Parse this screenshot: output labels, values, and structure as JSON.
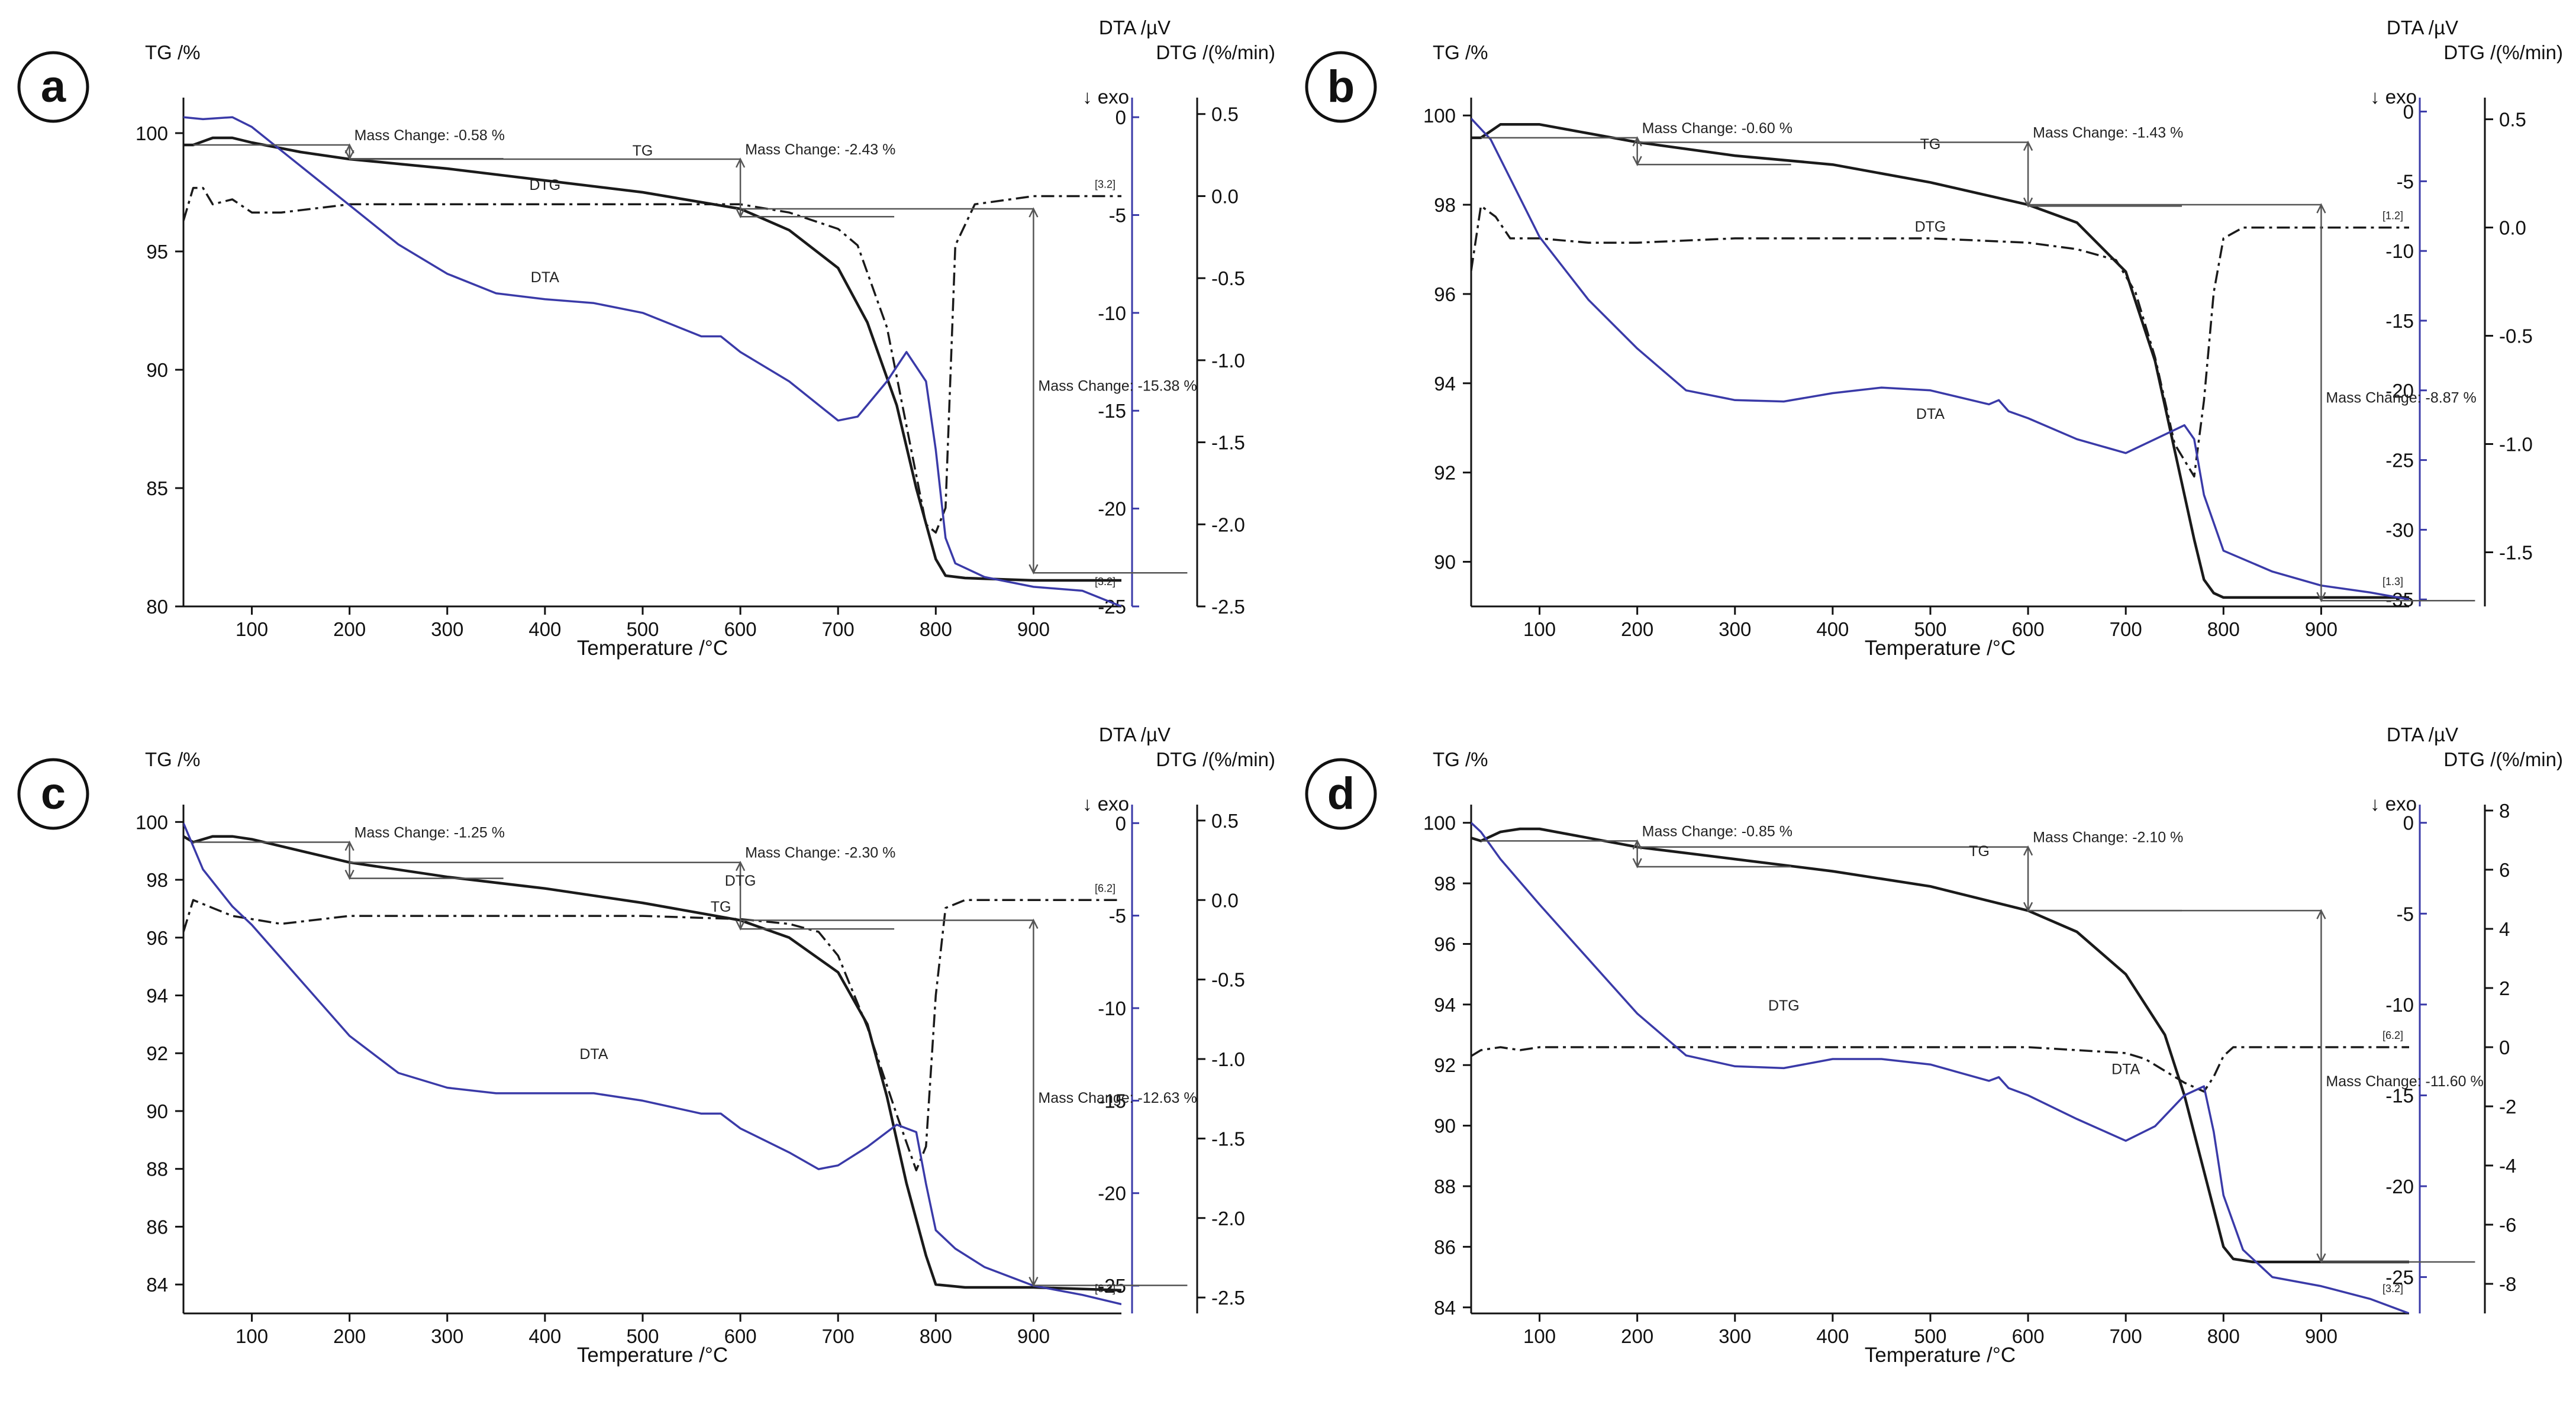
{
  "colors": {
    "tg": "#1a1a1a",
    "dtg": "#1a1a1a",
    "dta": "#3a3aa8",
    "axis": "#111111",
    "annotation": "#555555"
  },
  "chart_data": [
    {
      "panel_label": "a",
      "type": "line",
      "xlabel": "Temperature /°C",
      "left_label": "TG /%",
      "dta_label": "DTA /µV",
      "dtg_label": "DTG /(%/min)",
      "exo_label": "↓ exo",
      "xlim": [
        30,
        990
      ],
      "xticks": [
        100,
        200,
        300,
        400,
        500,
        600,
        700,
        800,
        900
      ],
      "tg_axis": {
        "range": [
          80,
          101.5
        ],
        "ticks": [
          80,
          85,
          90,
          95,
          100
        ]
      },
      "dta_axis": {
        "range": [
          -25,
          1
        ],
        "ticks": [
          0,
          -5,
          -10,
          -15,
          -20,
          -25
        ]
      },
      "dtg_axis": {
        "range": [
          -2.5,
          0.6
        ],
        "ticks": [
          0.5,
          0.0,
          -0.5,
          -1.0,
          -1.5,
          -2.0,
          -2.5
        ],
        "tick_labels": [
          "0.5",
          "0.0",
          "-0.5",
          "-1.0",
          "-1.5",
          "-2.0",
          "-2.5"
        ]
      },
      "series": [
        {
          "name": "TG",
          "axis": "tg",
          "x": [
            30,
            40,
            60,
            80,
            100,
            150,
            200,
            300,
            400,
            500,
            600,
            650,
            700,
            730,
            760,
            780,
            800,
            810,
            830,
            900,
            990
          ],
          "y": [
            99.5,
            99.5,
            99.8,
            99.8,
            99.6,
            99.2,
            98.9,
            98.5,
            98.0,
            97.5,
            96.8,
            95.9,
            94.3,
            92.0,
            88.5,
            85.0,
            82.0,
            81.3,
            81.2,
            81.1,
            81.1
          ]
        },
        {
          "name": "DTG",
          "axis": "dtg",
          "x": [
            30,
            40,
            50,
            60,
            80,
            100,
            130,
            200,
            300,
            400,
            500,
            600,
            650,
            700,
            720,
            750,
            770,
            790,
            800,
            810,
            820,
            840,
            900,
            990
          ],
          "y": [
            -0.15,
            0.05,
            0.05,
            -0.05,
            -0.02,
            -0.1,
            -0.1,
            -0.05,
            -0.05,
            -0.05,
            -0.05,
            -0.05,
            -0.1,
            -0.2,
            -0.3,
            -0.8,
            -1.4,
            -2.0,
            -2.05,
            -1.9,
            -0.3,
            -0.05,
            0.0,
            0.0
          ]
        },
        {
          "name": "DTA",
          "axis": "dta",
          "x": [
            30,
            50,
            80,
            100,
            150,
            200,
            250,
            300,
            350,
            400,
            450,
            500,
            560,
            580,
            600,
            650,
            700,
            720,
            750,
            770,
            790,
            800,
            810,
            820,
            850,
            900,
            950,
            990
          ],
          "y": [
            0.0,
            -0.1,
            0.0,
            -0.5,
            -2.5,
            -4.5,
            -6.5,
            -8.0,
            -9.0,
            -9.3,
            -9.5,
            -10.0,
            -11.2,
            -11.2,
            -12.0,
            -13.5,
            -15.5,
            -15.3,
            -13.5,
            -12.0,
            -13.5,
            -17.0,
            -21.5,
            -22.8,
            -23.5,
            -24.0,
            -24.2,
            -25.0
          ]
        }
      ],
      "annotations": [
        {
          "kind": "mass_change",
          "text": "Mass Change: -0.58 %"
        },
        {
          "kind": "mass_change",
          "text": "Mass Change: -2.43 %"
        },
        {
          "kind": "mass_change",
          "text": "Mass Change: -15.38 %"
        },
        {
          "kind": "curve_label",
          "text": "TG"
        },
        {
          "kind": "curve_label",
          "text": "DTG"
        },
        {
          "kind": "curve_label",
          "text": "DTA"
        },
        {
          "kind": "segment",
          "text": "[3.2]"
        },
        {
          "kind": "segment",
          "text": "[3.2]"
        }
      ]
    },
    {
      "panel_label": "b",
      "type": "line",
      "xlabel": "Temperature /°C",
      "left_label": "TG /%",
      "dta_label": "DTA /µV",
      "dtg_label": "DTG /(%/min)",
      "exo_label": "↓ exo",
      "xlim": [
        30,
        990
      ],
      "xticks": [
        100,
        200,
        300,
        400,
        500,
        600,
        700,
        800,
        900
      ],
      "tg_axis": {
        "range": [
          89,
          100.4
        ],
        "ticks": [
          90,
          92,
          94,
          96,
          98,
          100
        ]
      },
      "dta_axis": {
        "range": [
          -35.5,
          1
        ],
        "ticks": [
          0,
          -5,
          -10,
          -15,
          -20,
          -25,
          -30,
          -35
        ]
      },
      "dtg_axis": {
        "range": [
          -1.75,
          0.6
        ],
        "ticks": [
          0.5,
          0.0,
          -0.5,
          -1.0,
          -1.5
        ],
        "tick_labels": [
          "0.5",
          "0.0",
          "-0.5",
          "-1.0",
          "-1.5"
        ]
      },
      "series": [
        {
          "name": "TG",
          "axis": "tg",
          "x": [
            30,
            40,
            60,
            80,
            100,
            150,
            200,
            300,
            400,
            500,
            600,
            650,
            700,
            730,
            750,
            770,
            780,
            790,
            800,
            830,
            900,
            990
          ],
          "y": [
            99.5,
            99.5,
            99.8,
            99.8,
            99.8,
            99.6,
            99.4,
            99.1,
            98.9,
            98.5,
            98.0,
            97.6,
            96.5,
            94.5,
            92.5,
            90.5,
            89.6,
            89.3,
            89.2,
            89.2,
            89.2,
            89.2
          ]
        },
        {
          "name": "DTG",
          "axis": "dtg",
          "x": [
            30,
            40,
            55,
            70,
            100,
            150,
            200,
            300,
            400,
            500,
            600,
            650,
            690,
            710,
            730,
            750,
            770,
            780,
            790,
            800,
            820,
            900,
            990
          ],
          "y": [
            -0.2,
            0.1,
            0.05,
            -0.05,
            -0.05,
            -0.07,
            -0.07,
            -0.05,
            -0.05,
            -0.05,
            -0.07,
            -0.1,
            -0.15,
            -0.3,
            -0.6,
            -1.0,
            -1.15,
            -0.8,
            -0.3,
            -0.05,
            0.0,
            0.0,
            0.0
          ]
        },
        {
          "name": "DTA",
          "axis": "dta",
          "x": [
            30,
            50,
            100,
            150,
            200,
            250,
            300,
            350,
            400,
            450,
            500,
            560,
            570,
            580,
            600,
            650,
            700,
            730,
            760,
            770,
            780,
            800,
            850,
            900,
            950,
            990
          ],
          "y": [
            -0.5,
            -2.0,
            -9.0,
            -13.5,
            -17.0,
            -20.0,
            -20.7,
            -20.8,
            -20.2,
            -19.8,
            -20.0,
            -21.0,
            -20.7,
            -21.5,
            -22.0,
            -23.5,
            -24.5,
            -23.5,
            -22.5,
            -23.5,
            -27.5,
            -31.5,
            -33.0,
            -34.0,
            -34.5,
            -35.0
          ]
        }
      ],
      "annotations": [
        {
          "kind": "mass_change",
          "text": "Mass Change: -0.60 %"
        },
        {
          "kind": "mass_change",
          "text": "Mass Change: -1.43 %"
        },
        {
          "kind": "mass_change",
          "text": "Mass Change: -8.87 %"
        },
        {
          "kind": "curve_label",
          "text": "TG"
        },
        {
          "kind": "curve_label",
          "text": "DTG"
        },
        {
          "kind": "curve_label",
          "text": "DTA"
        },
        {
          "kind": "segment",
          "text": "[1.2]"
        },
        {
          "kind": "segment",
          "text": "[1.3]"
        }
      ]
    },
    {
      "panel_label": "c",
      "type": "line",
      "xlabel": "Temperature /°C",
      "left_label": "TG /%",
      "dta_label": "DTA /µV",
      "dtg_label": "DTG /(%/min)",
      "exo_label": "↓ exo",
      "xlim": [
        30,
        990
      ],
      "xticks": [
        100,
        200,
        300,
        400,
        500,
        600,
        700,
        800,
        900
      ],
      "tg_axis": {
        "range": [
          83,
          100.6
        ],
        "ticks": [
          84,
          86,
          88,
          90,
          92,
          94,
          96,
          98,
          100
        ]
      },
      "dta_axis": {
        "range": [
          -26.5,
          1
        ],
        "ticks": [
          0,
          -5,
          -10,
          -15,
          -20,
          -25
        ]
      },
      "dtg_axis": {
        "range": [
          -2.6,
          0.6
        ],
        "ticks": [
          0.5,
          0.0,
          -0.5,
          -1.0,
          -1.5,
          -2.0,
          -2.5
        ],
        "tick_labels": [
          "0.5",
          "0.0",
          "-0.5",
          "-1.0",
          "-1.5",
          "-2.0",
          "-2.5"
        ]
      },
      "series": [
        {
          "name": "TG",
          "axis": "tg",
          "x": [
            30,
            40,
            60,
            80,
            100,
            150,
            200,
            300,
            400,
            500,
            600,
            650,
            700,
            730,
            750,
            770,
            790,
            800,
            830,
            900,
            990
          ],
          "y": [
            99.5,
            99.3,
            99.5,
            99.5,
            99.4,
            99.0,
            98.6,
            98.1,
            97.7,
            97.2,
            96.6,
            96.0,
            94.8,
            93.0,
            90.5,
            87.5,
            85.0,
            84.0,
            83.9,
            83.9,
            83.8
          ]
        },
        {
          "name": "DTG",
          "axis": "dtg",
          "x": [
            30,
            40,
            60,
            80,
            100,
            130,
            200,
            300,
            400,
            500,
            600,
            650,
            680,
            700,
            730,
            760,
            780,
            790,
            800,
            810,
            830,
            900,
            990
          ],
          "y": [
            -0.2,
            0.0,
            -0.05,
            -0.1,
            -0.12,
            -0.15,
            -0.1,
            -0.1,
            -0.1,
            -0.1,
            -0.12,
            -0.15,
            -0.2,
            -0.35,
            -0.8,
            -1.35,
            -1.7,
            -1.55,
            -0.6,
            -0.05,
            0.0,
            0.0,
            0.0
          ]
        },
        {
          "name": "DTA",
          "axis": "dta",
          "x": [
            30,
            50,
            80,
            100,
            150,
            200,
            250,
            300,
            350,
            400,
            450,
            500,
            560,
            580,
            600,
            650,
            680,
            700,
            730,
            760,
            780,
            790,
            800,
            820,
            850,
            900,
            950,
            990
          ],
          "y": [
            0.0,
            -2.5,
            -4.5,
            -5.5,
            -8.5,
            -11.5,
            -13.5,
            -14.3,
            -14.6,
            -14.6,
            -14.6,
            -15.0,
            -15.7,
            -15.7,
            -16.5,
            -17.8,
            -18.7,
            -18.5,
            -17.5,
            -16.3,
            -16.7,
            -19.5,
            -22.0,
            -23.0,
            -24.0,
            -25.0,
            -25.5,
            -26.0
          ]
        }
      ],
      "annotations": [
        {
          "kind": "mass_change",
          "text": "Mass Change: -1.25 %"
        },
        {
          "kind": "mass_change",
          "text": "Mass Change: -2.30 %"
        },
        {
          "kind": "mass_change",
          "text": "Mass Change: -12.63 %"
        },
        {
          "kind": "curve_label",
          "text": "DTG"
        },
        {
          "kind": "curve_label",
          "text": "TG"
        },
        {
          "kind": "curve_label",
          "text": "DTA"
        },
        {
          "kind": "segment",
          "text": "[6.2]"
        },
        {
          "kind": "segment",
          "text": "[6.2]"
        }
      ]
    },
    {
      "panel_label": "d",
      "type": "line",
      "xlabel": "Temperature /°C",
      "left_label": "TG /%",
      "dta_label": "DTA /µV",
      "dtg_label": "DTG /(%/min)",
      "exo_label": "↓ exo",
      "xlim": [
        30,
        990
      ],
      "xticks": [
        100,
        200,
        300,
        400,
        500,
        600,
        700,
        800,
        900
      ],
      "tg_axis": {
        "range": [
          83.8,
          100.6
        ],
        "ticks": [
          84,
          86,
          88,
          90,
          92,
          94,
          96,
          98,
          100
        ]
      },
      "dta_axis": {
        "range": [
          -27,
          1
        ],
        "ticks": [
          0,
          -5,
          -10,
          -15,
          -20,
          -25
        ]
      },
      "dtg_axis": {
        "range": [
          -9,
          8.2
        ],
        "ticks": [
          8,
          6,
          4,
          2,
          0,
          -2,
          -4,
          -6,
          -8
        ],
        "tick_labels": [
          "8",
          "6",
          "4",
          "2",
          "0",
          "-2",
          "-4",
          "-6",
          "-8"
        ]
      },
      "series": [
        {
          "name": "TG",
          "axis": "tg",
          "x": [
            30,
            40,
            60,
            80,
            100,
            150,
            200,
            300,
            400,
            500,
            600,
            650,
            700,
            740,
            760,
            780,
            800,
            810,
            830,
            900,
            990
          ],
          "y": [
            99.5,
            99.4,
            99.7,
            99.8,
            99.8,
            99.5,
            99.2,
            98.8,
            98.4,
            97.9,
            97.1,
            96.4,
            95.0,
            93.0,
            91.0,
            88.5,
            86.0,
            85.6,
            85.5,
            85.5,
            85.5
          ]
        },
        {
          "name": "DTG",
          "axis": "dtg",
          "x": [
            30,
            40,
            60,
            80,
            100,
            200,
            300,
            400,
            500,
            600,
            650,
            700,
            720,
            740,
            760,
            780,
            790,
            800,
            810,
            830,
            900,
            990
          ],
          "y": [
            -0.3,
            -0.1,
            0.0,
            -0.1,
            0.0,
            0.0,
            0.0,
            0.0,
            0.0,
            0.0,
            -0.1,
            -0.2,
            -0.4,
            -0.8,
            -1.2,
            -1.5,
            -1.0,
            -0.3,
            0.0,
            0.0,
            0.0,
            0.0
          ]
        },
        {
          "name": "DTA",
          "axis": "dta",
          "x": [
            30,
            40,
            60,
            100,
            150,
            200,
            250,
            300,
            350,
            400,
            450,
            500,
            560,
            570,
            580,
            600,
            650,
            700,
            730,
            760,
            780,
            790,
            800,
            820,
            850,
            900,
            950,
            990
          ],
          "y": [
            0.0,
            -0.5,
            -2.0,
            -4.5,
            -7.5,
            -10.5,
            -12.8,
            -13.4,
            -13.5,
            -13.0,
            -13.0,
            -13.3,
            -14.2,
            -14.0,
            -14.6,
            -15.0,
            -16.3,
            -17.5,
            -16.7,
            -15.0,
            -14.5,
            -17.0,
            -20.5,
            -23.5,
            -25.0,
            -25.5,
            -26.2,
            -27.0
          ]
        }
      ],
      "annotations": [
        {
          "kind": "mass_change",
          "text": "Mass Change: -0.85 %"
        },
        {
          "kind": "mass_change",
          "text": "Mass Change: -2.10 %"
        },
        {
          "kind": "mass_change",
          "text": "Mass Change: -11.60 %"
        },
        {
          "kind": "curve_label",
          "text": "TG"
        },
        {
          "kind": "curve_label",
          "text": "DTG"
        },
        {
          "kind": "curve_label",
          "text": "DTA"
        },
        {
          "kind": "segment",
          "text": "[6.2]"
        },
        {
          "kind": "segment",
          "text": "[3.2]"
        }
      ]
    }
  ]
}
